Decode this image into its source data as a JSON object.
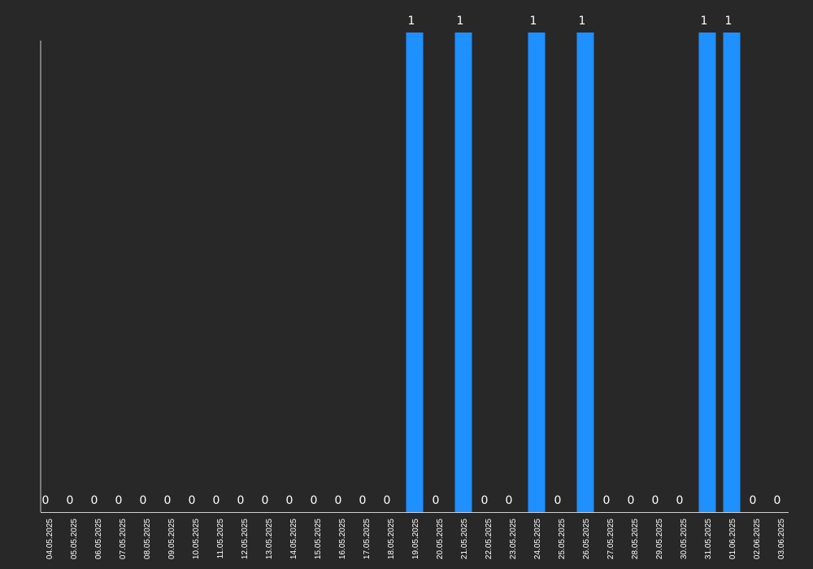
{
  "chart_data": {
    "type": "bar",
    "categories": [
      "04.05.2025",
      "05.05.2025",
      "06.05.2025",
      "07.05.2025",
      "08.05.2025",
      "09.05.2025",
      "10.05.2025",
      "11.05.2025",
      "12.05.2025",
      "13.05.2025",
      "14.05.2025",
      "15.05.2025",
      "16.05.2025",
      "17.05.2025",
      "18.05.2025",
      "19.05.2025",
      "20.05.2025",
      "21.05.2025",
      "22.05.2025",
      "23.05.2025",
      "24.05.2025",
      "25.05.2025",
      "26.05.2025",
      "27.05.2025",
      "28.05.2025",
      "29.05.2025",
      "30.05.2025",
      "31.05.2025",
      "01.06.2025",
      "02.06.2025",
      "03.06.2025"
    ],
    "values": [
      0,
      0,
      0,
      0,
      0,
      0,
      0,
      0,
      0,
      0,
      0,
      0,
      0,
      0,
      0,
      1,
      0,
      1,
      0,
      0,
      1,
      0,
      1,
      0,
      0,
      0,
      0,
      1,
      1,
      0,
      0
    ],
    "data_labels": [
      "0",
      "0",
      "0",
      "0",
      "0",
      "0",
      "0",
      "0",
      "0",
      "0",
      "0",
      "0",
      "0",
      "0",
      "0",
      "1",
      "0",
      "1",
      "0",
      "0",
      "1",
      "0",
      "1",
      "0",
      "0",
      "0",
      "0",
      "1",
      "1",
      "0",
      "0"
    ],
    "title": "",
    "xlabel": "",
    "ylabel": "",
    "ylim": [
      0,
      1
    ],
    "grid": false,
    "legend": "none",
    "colors": {
      "bar": "#1e90ff",
      "background": "#282828",
      "axis": "#d0d0d0",
      "text": "#ffffff"
    }
  }
}
